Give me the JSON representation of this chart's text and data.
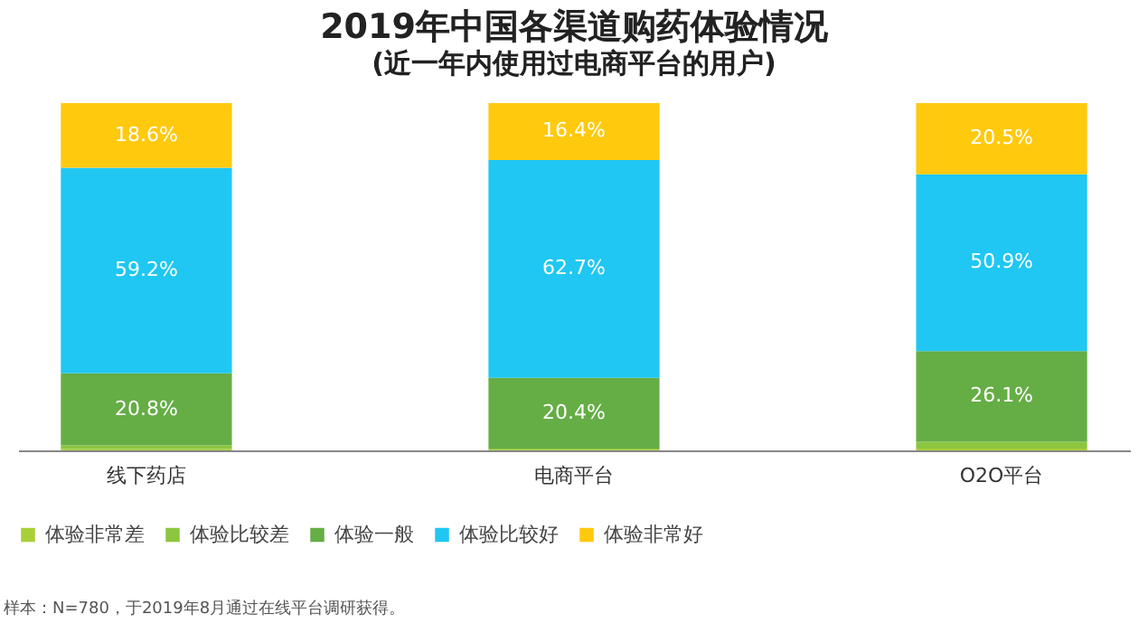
{
  "chart_data": {
    "type": "bar",
    "stacked": true,
    "title": "2019年中国各渠道购药体验情况",
    "subtitle": "(近一年内使用过电商平台的用户)",
    "categories": [
      "线下药店",
      "电商平台",
      "O2O平台"
    ],
    "series": [
      {
        "name": "体验非常差",
        "color": "#a8cf38",
        "values": [
          0.4,
          0.2,
          0.5
        ],
        "value_labels": [
          null,
          null,
          null
        ]
      },
      {
        "name": "体验比较差",
        "color": "#8cc63f",
        "values": [
          1.0,
          0.3,
          2.0
        ],
        "value_labels": [
          null,
          null,
          null
        ]
      },
      {
        "name": "体验一般",
        "color": "#65ad45",
        "values": [
          20.8,
          20.4,
          26.1
        ],
        "value_labels": [
          "20.8%",
          "20.4%",
          "26.1%"
        ]
      },
      {
        "name": "体验比较好",
        "color": "#1fc7f2",
        "values": [
          59.2,
          62.7,
          50.9
        ],
        "value_labels": [
          "59.2%",
          "62.7%",
          "50.9%"
        ]
      },
      {
        "name": "体验非常好",
        "color": "#ffc90e",
        "values": [
          18.6,
          16.4,
          20.5
        ],
        "value_labels": [
          "18.6%",
          "16.4%",
          "20.5%"
        ]
      }
    ],
    "legend": "bottom",
    "annotations": [
      "样本：N=780，于2019年8月通过在线平台调研获得。"
    ]
  }
}
